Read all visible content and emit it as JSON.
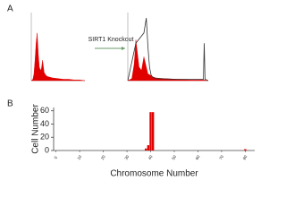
{
  "labels": {
    "panel_a": "A",
    "panel_b": "B",
    "arrow_text": "SIRT1 Knockout"
  },
  "chart_data": [
    {
      "type": "area",
      "xlim": [
        0,
        100
      ],
      "ylim": [
        0,
        100
      ],
      "series": [
        {
          "color": "#e00000",
          "filled": true,
          "x": [
            0,
            3,
            5,
            7,
            9,
            11,
            13,
            15,
            17,
            19,
            21,
            24,
            27,
            30,
            35,
            40,
            50,
            60,
            70,
            80,
            90,
            100
          ],
          "values": [
            0,
            2,
            10,
            30,
            55,
            70,
            40,
            20,
            15,
            18,
            30,
            12,
            8,
            6,
            5,
            4,
            3,
            2,
            2,
            1,
            1,
            0
          ]
        }
      ]
    },
    {
      "type": "area",
      "xlim": [
        0,
        100
      ],
      "ylim": [
        0,
        100
      ],
      "series": [
        {
          "color": "#e00000",
          "filled": true,
          "x": [
            0,
            5,
            8,
            10,
            12,
            14,
            17,
            20,
            23,
            25,
            28,
            30,
            35,
            45,
            60,
            80,
            95,
            100
          ],
          "values": [
            0,
            3,
            25,
            60,
            40,
            20,
            15,
            35,
            20,
            10,
            8,
            6,
            4,
            3,
            2,
            1,
            1,
            0
          ]
        },
        {
          "color": "#333333",
          "filled": false,
          "x": [
            0,
            10,
            20,
            23,
            25,
            27,
            29,
            31,
            35,
            60,
            94,
            95,
            96,
            100
          ],
          "values": [
            0,
            55,
            70,
            92,
            50,
            20,
            8,
            5,
            3,
            2,
            2,
            55,
            2,
            0
          ]
        }
      ]
    },
    {
      "type": "bar",
      "xlabel": "Chromosome Number",
      "ylabel": "Cell Number",
      "color": "#e00000",
      "x": [
        38,
        39,
        40,
        41,
        80
      ],
      "values": [
        3,
        8,
        58,
        58,
        2
      ],
      "xlim": [
        -1,
        84
      ],
      "ylim": [
        0,
        65
      ],
      "xticks": [
        0,
        10,
        20,
        30,
        40,
        50,
        60,
        70,
        80
      ],
      "yticks": [
        0,
        20,
        40,
        60
      ]
    }
  ]
}
